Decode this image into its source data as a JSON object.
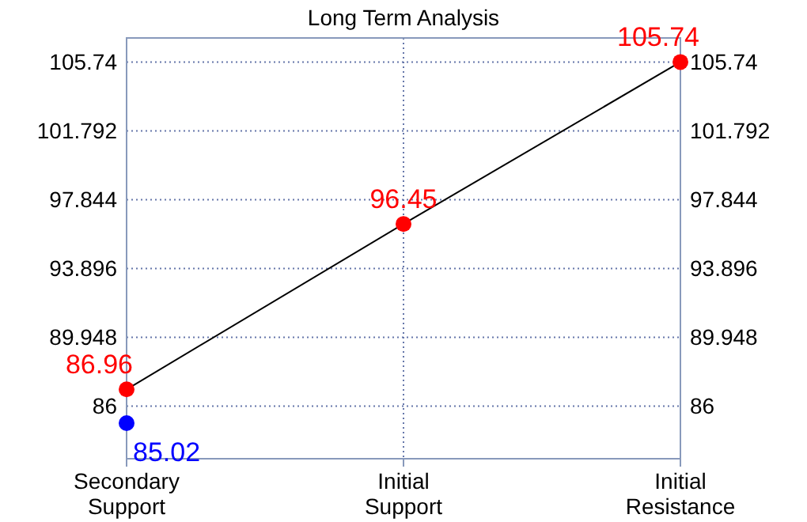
{
  "chart_data": {
    "type": "scatter",
    "title": "Long Term Analysis",
    "categories": [
      "Secondary Support",
      "Initial Support",
      "Initial Resistance"
    ],
    "ylim": [
      82.98,
      107.12
    ],
    "yticks": [
      86,
      89.948,
      93.896,
      97.844,
      101.792,
      105.74
    ],
    "y2lim": [
      82.98,
      107.12
    ],
    "y2ticks": [
      86,
      89.948,
      93.896,
      97.844,
      101.792,
      105.74
    ],
    "grid": true,
    "marker": "circle",
    "series": [
      {
        "type": "line",
        "color": "#000000",
        "marker": "none",
        "values": [
          86.96,
          96.45,
          105.74
        ]
      },
      {
        "color": "#ff0000",
        "values": [
          86.96,
          96.45,
          105.74
        ],
        "value_labels": [
          "86.96",
          "96.45",
          "105.74"
        ]
      },
      {
        "color": "#0000ff",
        "x": [
          "Secondary Support"
        ],
        "values": [
          85.02
        ],
        "value_labels": [
          "85.02"
        ]
      }
    ]
  }
}
